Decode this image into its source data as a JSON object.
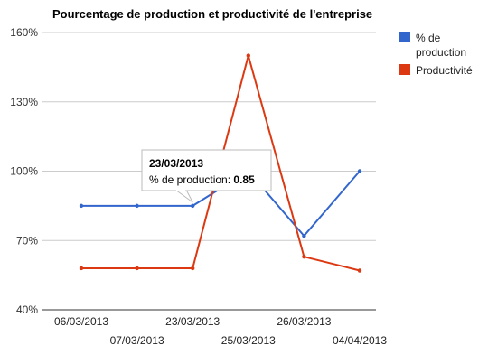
{
  "chart_data": {
    "type": "line",
    "title": "Pourcentage de production et productivité de l'entreprise",
    "xlabel": "",
    "ylabel": "",
    "categories": [
      "06/03/2013",
      "07/03/2013",
      "23/03/2013",
      "25/03/2013",
      "26/03/2013",
      "04/04/2013"
    ],
    "series": [
      {
        "name": "% de production",
        "label_lines": [
          "% de",
          "production"
        ],
        "color": "#3366cc",
        "values": [
          0.85,
          0.85,
          0.85,
          1.0,
          0.72,
          1.0
        ]
      },
      {
        "name": "Productivité",
        "label_lines": [
          "Productivité"
        ],
        "color": "#dc3912",
        "values": [
          0.58,
          0.58,
          0.58,
          1.5,
          0.63,
          0.57
        ]
      }
    ],
    "ylim": [
      0.4,
      1.6
    ],
    "yticks": [
      {
        "value": 0.4,
        "label": "40%"
      },
      {
        "value": 0.7,
        "label": "70%"
      },
      {
        "value": 1.0,
        "label": "100%"
      },
      {
        "value": 1.3,
        "label": "130%"
      },
      {
        "value": 1.6,
        "label": "160%"
      }
    ],
    "grid": true,
    "legend": "right",
    "tooltip": {
      "title": "23/03/2013",
      "label": "% de production: ",
      "value": "0.85",
      "series_index": 0,
      "point_index": 2
    }
  }
}
